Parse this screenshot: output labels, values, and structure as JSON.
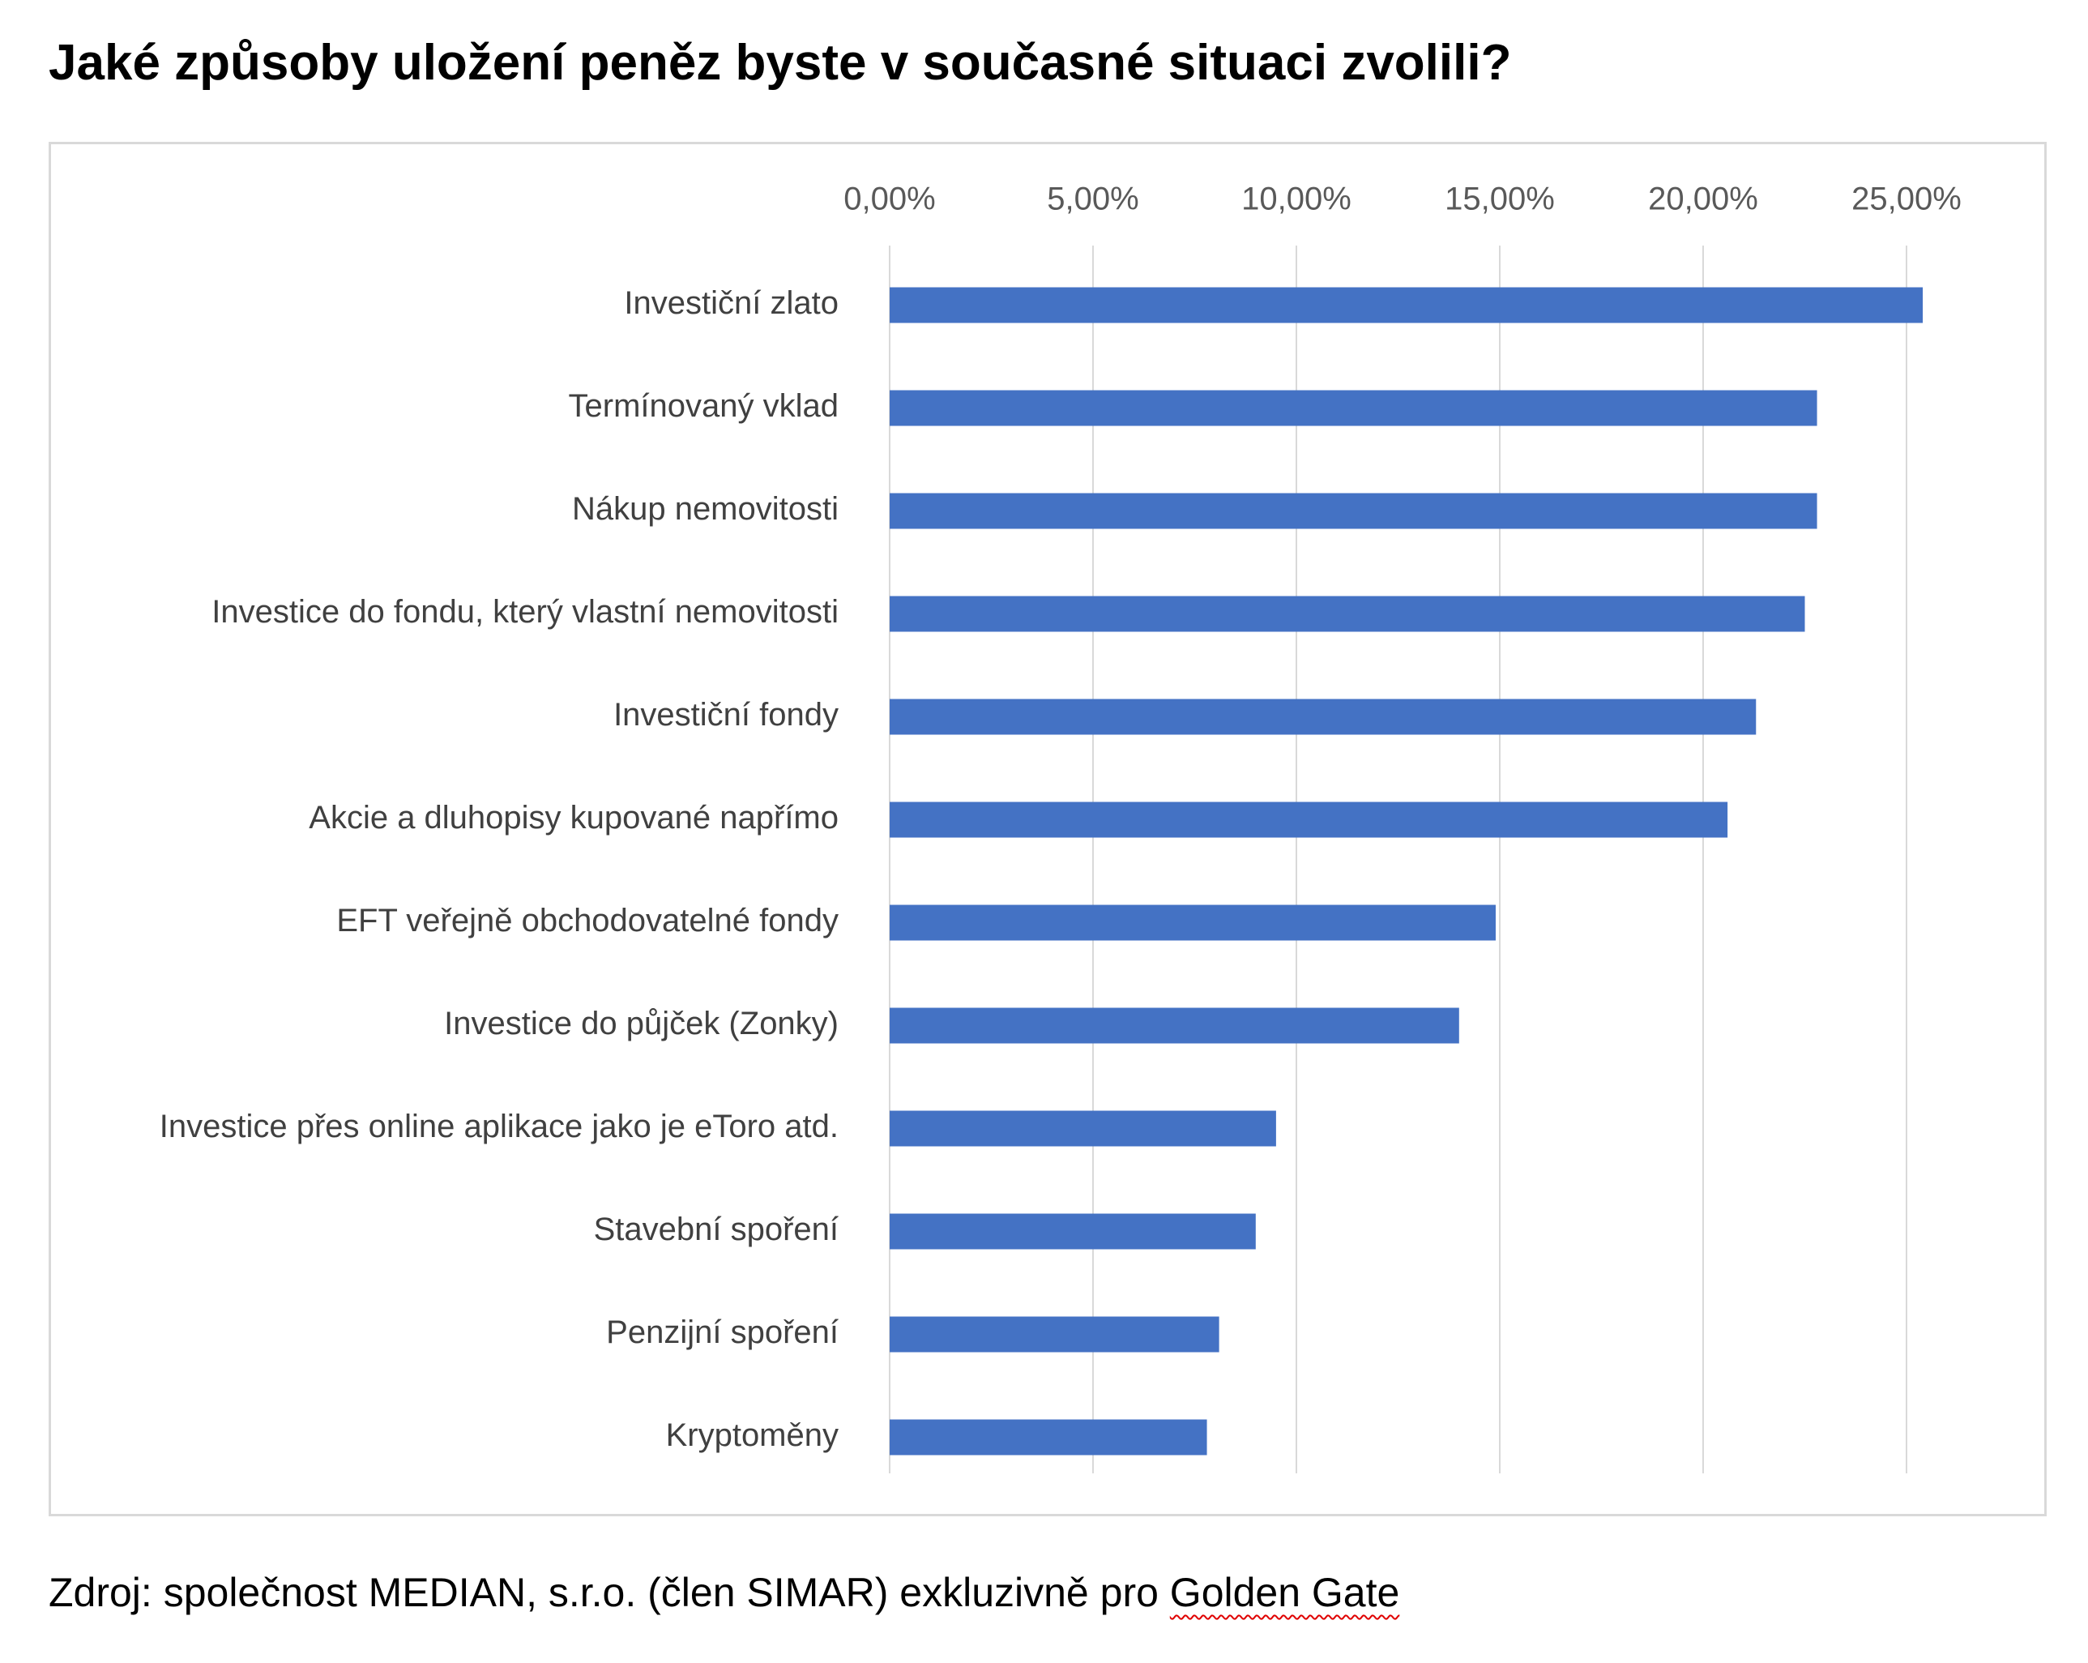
{
  "title": "Jaké způsoby uložení peněz byste v současné situaci zvolili?",
  "source": {
    "text": "Zdroj: společnost MEDIAN, s.r.o. (člen SIMAR) exkluzivně pro ",
    "flagged_text": "Golden Gate"
  },
  "chart_data": {
    "type": "bar",
    "orientation": "horizontal",
    "categories": [
      "Investiční zlato",
      "Termínovaný vklad",
      "Nákup nemovitosti",
      "Investice do fondu, který vlastní nemovitosti",
      "Investiční fondy",
      "Akcie a dluhopisy kupované napřímo",
      "EFT veřejně obchodovatelné fondy",
      "Investice do půjček (Zonky)",
      "Investice přes online aplikace jako je eToro atd.",
      "Stavební spoření",
      "Penzijní spoření",
      "Kryptoměny"
    ],
    "values": [
      25.4,
      22.8,
      22.8,
      22.5,
      21.3,
      20.6,
      14.9,
      14.0,
      9.5,
      9.0,
      8.1,
      7.8
    ],
    "xlim": [
      0,
      25
    ],
    "ticks": [
      0,
      5,
      10,
      15,
      20,
      25
    ],
    "tick_labels": [
      "0,00%",
      "5,00%",
      "10,00%",
      "15,00%",
      "20,00%",
      "25,00%"
    ],
    "axis_position": "top",
    "grid": true,
    "bar_color": "#4472c4",
    "grid_color": "#d9d9d9"
  }
}
